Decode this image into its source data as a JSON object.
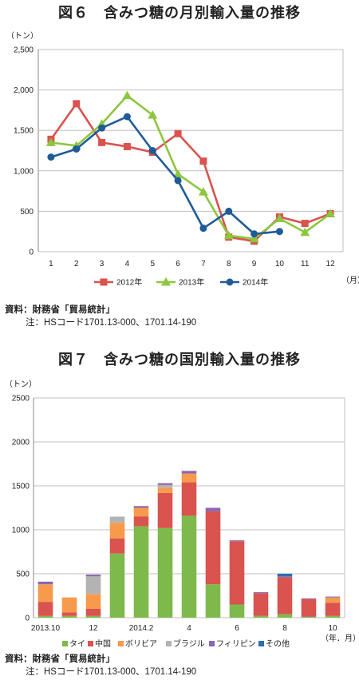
{
  "chart1": {
    "title": "図６　含みつ糖の月別輸入量の推移",
    "ylabel": "（トン）",
    "xlabel": "（月）",
    "source": "資料：財務省「貿易統計」",
    "note": "注：HSコード1701.13-000、1701.14-190",
    "chart_data": {
      "type": "line",
      "categories": [
        "1",
        "2",
        "3",
        "4",
        "5",
        "6",
        "7",
        "8",
        "9",
        "10",
        "11",
        "12"
      ],
      "yticks": [
        "0",
        "500",
        "1,000",
        "1,500",
        "2,000",
        "2,500"
      ],
      "ylim": [
        0,
        2500
      ],
      "grid": true,
      "legend": "bottom",
      "series": [
        {
          "name": "2012年",
          "color": "#d9534f",
          "marker": "square",
          "values": [
            1390,
            1830,
            1350,
            1300,
            1230,
            1460,
            1120,
            180,
            130,
            430,
            350,
            470
          ]
        },
        {
          "name": "2013年",
          "color": "#8dc63f",
          "marker": "triangle",
          "values": [
            1350,
            1310,
            1580,
            1930,
            1690,
            960,
            740,
            200,
            160,
            410,
            240,
            470
          ]
        },
        {
          "name": "2014年",
          "color": "#1f5b99",
          "marker": "circle",
          "values": [
            1170,
            1270,
            1530,
            1670,
            1250,
            880,
            290,
            500,
            220,
            250,
            null,
            null
          ]
        }
      ]
    }
  },
  "chart2": {
    "title": "図７　含みつ糖の国別輸入量の推移",
    "ylabel": "（トン）",
    "xlabel": "（年．月）",
    "source": "資料：財務省「貿易統計」",
    "note": "注：HSコード1701.13-000、1701.14-190",
    "chart_data": {
      "type": "bar",
      "stacked": true,
      "categories": [
        "2013.10",
        "11",
        "12",
        "2014.1",
        "2014.2",
        "3",
        "4",
        "5",
        "6",
        "7",
        "8",
        "9",
        "10"
      ],
      "tick_labels": [
        "2013.10",
        "",
        "12",
        "",
        "2014.2",
        "",
        "4",
        "",
        "6",
        "",
        "8",
        "",
        "10"
      ],
      "yticks": [
        "0",
        "500",
        "1000",
        "1500",
        "2000",
        "2500"
      ],
      "ylim": [
        0,
        2500
      ],
      "grid": true,
      "legend": "bottom",
      "series": [
        {
          "name": "タイ",
          "color": "#7dba4b",
          "values": [
            20,
            20,
            20,
            730,
            1040,
            1020,
            1160,
            380,
            150,
            20,
            40,
            10,
            20
          ]
        },
        {
          "name": "中国",
          "color": "#d9534f",
          "values": [
            160,
            40,
            80,
            170,
            110,
            400,
            380,
            830,
            720,
            260,
            420,
            200,
            150
          ]
        },
        {
          "name": "ボリビア",
          "color": "#f79a4c",
          "values": [
            200,
            170,
            170,
            180,
            100,
            60,
            100,
            0,
            0,
            0,
            0,
            0,
            60
          ]
        },
        {
          "name": "ブラジル",
          "color": "#b3b3b3",
          "values": [
            0,
            0,
            200,
            70,
            0,
            30,
            0,
            0,
            0,
            0,
            0,
            0,
            0
          ]
        },
        {
          "name": "フィリピン",
          "color": "#8b67b1",
          "values": [
            30,
            0,
            20,
            0,
            20,
            20,
            30,
            40,
            10,
            10,
            10,
            10,
            10
          ]
        },
        {
          "name": "その他",
          "color": "#2a6fb0",
          "values": [
            0,
            0,
            0,
            0,
            0,
            0,
            0,
            0,
            0,
            0,
            30,
            0,
            0
          ]
        }
      ]
    }
  }
}
